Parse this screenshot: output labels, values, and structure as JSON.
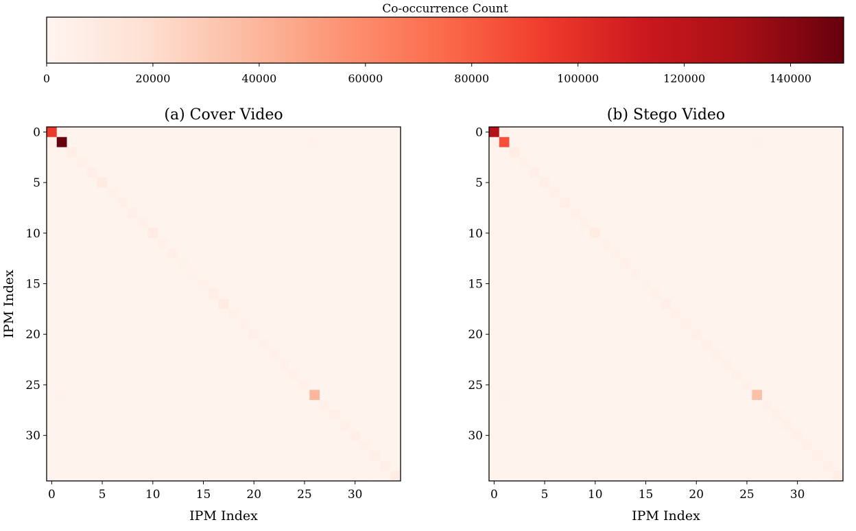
{
  "colorbar": {
    "label": "Co-occurrence Count",
    "min": 0,
    "max": 150000,
    "ticks": [
      0,
      20000,
      40000,
      60000,
      80000,
      100000,
      120000,
      140000
    ],
    "tick_labels": [
      "0",
      "20000",
      "40000",
      "60000",
      "80000",
      "100000",
      "120000",
      "140000"
    ],
    "colormap": "Reds",
    "colors": [
      "#fff5f0",
      "#fee0d2",
      "#fcbba1",
      "#fc9272",
      "#fb6a4a",
      "#ef3b2c",
      "#cb181d",
      "#a50f15",
      "#67000d"
    ]
  },
  "chart_data": [
    {
      "type": "heatmap",
      "title": "(a) Cover Video",
      "xlabel": "IPM Index",
      "ylabel": "IPM Index",
      "size": 35,
      "x_ticks": [
        0,
        5,
        10,
        15,
        20,
        25,
        30
      ],
      "y_ticks": [
        0,
        5,
        10,
        15,
        20,
        25,
        30
      ],
      "background_value": 1500,
      "diagonal": [
        95000,
        150000,
        6000,
        4000,
        5000,
        9000,
        4000,
        5000,
        5000,
        3500,
        9000,
        3500,
        5000,
        3000,
        2500,
        3000,
        6000,
        9000,
        4000,
        4500,
        5000,
        4000,
        4500,
        3500,
        4000,
        3500,
        40000,
        4500,
        5000,
        4000,
        5500,
        4500,
        6000,
        5000,
        7000
      ],
      "off_diagonal": [
        {
          "row": 0,
          "col": 1,
          "value": 4000
        },
        {
          "row": 1,
          "col": 0,
          "value": 3500
        },
        {
          "row": 1,
          "col": 26,
          "value": 2500
        },
        {
          "row": 26,
          "col": 1,
          "value": 2500
        }
      ]
    },
    {
      "type": "heatmap",
      "title": "(b) Stego Video",
      "xlabel": "IPM Index",
      "ylabel": "",
      "size": 35,
      "x_ticks": [
        0,
        5,
        10,
        15,
        20,
        25,
        30
      ],
      "y_ticks": [
        0,
        5,
        10,
        15,
        20,
        25,
        30
      ],
      "background_value": 1500,
      "diagonal": [
        125000,
        85000,
        8000,
        3500,
        5000,
        5000,
        4000,
        6000,
        4500,
        4000,
        8000,
        4000,
        4500,
        3500,
        4000,
        3000,
        4500,
        5000,
        4000,
        4500,
        4500,
        4000,
        4500,
        3500,
        4500,
        3500,
        35000,
        4000,
        4500,
        4000,
        4500,
        4000,
        5000,
        4500,
        6000
      ],
      "off_diagonal": [
        {
          "row": 0,
          "col": 1,
          "value": 4000
        },
        {
          "row": 1,
          "col": 0,
          "value": 4000
        },
        {
          "row": 1,
          "col": 26,
          "value": 2500
        },
        {
          "row": 26,
          "col": 1,
          "value": 2500
        }
      ]
    }
  ]
}
